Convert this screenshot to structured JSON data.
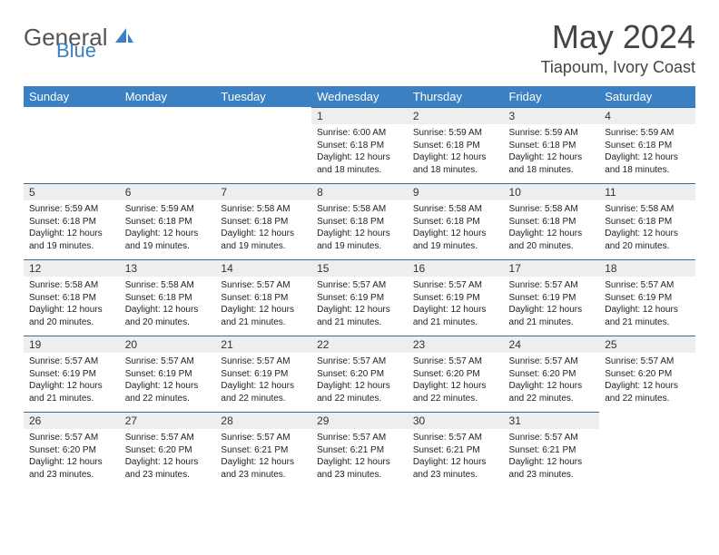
{
  "logo": {
    "text1": "General",
    "text2": "Blue"
  },
  "title": "May 2024",
  "subtitle": "Tiapoum, Ivory Coast",
  "colors": {
    "header_bg": "#3a80c3",
    "header_text": "#ffffff",
    "daynum_bg": "#eceef0",
    "daynum_border": "#3a6a9a",
    "logo_gray": "#555555",
    "logo_blue": "#3a80c3",
    "body_text": "#222222"
  },
  "day_names": [
    "Sunday",
    "Monday",
    "Tuesday",
    "Wednesday",
    "Thursday",
    "Friday",
    "Saturday"
  ],
  "first_weekday": 3,
  "num_days": 31,
  "days": {
    "1": {
      "sunrise": "6:00 AM",
      "sunset": "6:18 PM",
      "daylight": "12 hours and 18 minutes."
    },
    "2": {
      "sunrise": "5:59 AM",
      "sunset": "6:18 PM",
      "daylight": "12 hours and 18 minutes."
    },
    "3": {
      "sunrise": "5:59 AM",
      "sunset": "6:18 PM",
      "daylight": "12 hours and 18 minutes."
    },
    "4": {
      "sunrise": "5:59 AM",
      "sunset": "6:18 PM",
      "daylight": "12 hours and 18 minutes."
    },
    "5": {
      "sunrise": "5:59 AM",
      "sunset": "6:18 PM",
      "daylight": "12 hours and 19 minutes."
    },
    "6": {
      "sunrise": "5:59 AM",
      "sunset": "6:18 PM",
      "daylight": "12 hours and 19 minutes."
    },
    "7": {
      "sunrise": "5:58 AM",
      "sunset": "6:18 PM",
      "daylight": "12 hours and 19 minutes."
    },
    "8": {
      "sunrise": "5:58 AM",
      "sunset": "6:18 PM",
      "daylight": "12 hours and 19 minutes."
    },
    "9": {
      "sunrise": "5:58 AM",
      "sunset": "6:18 PM",
      "daylight": "12 hours and 19 minutes."
    },
    "10": {
      "sunrise": "5:58 AM",
      "sunset": "6:18 PM",
      "daylight": "12 hours and 20 minutes."
    },
    "11": {
      "sunrise": "5:58 AM",
      "sunset": "6:18 PM",
      "daylight": "12 hours and 20 minutes."
    },
    "12": {
      "sunrise": "5:58 AM",
      "sunset": "6:18 PM",
      "daylight": "12 hours and 20 minutes."
    },
    "13": {
      "sunrise": "5:58 AM",
      "sunset": "6:18 PM",
      "daylight": "12 hours and 20 minutes."
    },
    "14": {
      "sunrise": "5:57 AM",
      "sunset": "6:18 PM",
      "daylight": "12 hours and 21 minutes."
    },
    "15": {
      "sunrise": "5:57 AM",
      "sunset": "6:19 PM",
      "daylight": "12 hours and 21 minutes."
    },
    "16": {
      "sunrise": "5:57 AM",
      "sunset": "6:19 PM",
      "daylight": "12 hours and 21 minutes."
    },
    "17": {
      "sunrise": "5:57 AM",
      "sunset": "6:19 PM",
      "daylight": "12 hours and 21 minutes."
    },
    "18": {
      "sunrise": "5:57 AM",
      "sunset": "6:19 PM",
      "daylight": "12 hours and 21 minutes."
    },
    "19": {
      "sunrise": "5:57 AM",
      "sunset": "6:19 PM",
      "daylight": "12 hours and 21 minutes."
    },
    "20": {
      "sunrise": "5:57 AM",
      "sunset": "6:19 PM",
      "daylight": "12 hours and 22 minutes."
    },
    "21": {
      "sunrise": "5:57 AM",
      "sunset": "6:19 PM",
      "daylight": "12 hours and 22 minutes."
    },
    "22": {
      "sunrise": "5:57 AM",
      "sunset": "6:20 PM",
      "daylight": "12 hours and 22 minutes."
    },
    "23": {
      "sunrise": "5:57 AM",
      "sunset": "6:20 PM",
      "daylight": "12 hours and 22 minutes."
    },
    "24": {
      "sunrise": "5:57 AM",
      "sunset": "6:20 PM",
      "daylight": "12 hours and 22 minutes."
    },
    "25": {
      "sunrise": "5:57 AM",
      "sunset": "6:20 PM",
      "daylight": "12 hours and 22 minutes."
    },
    "26": {
      "sunrise": "5:57 AM",
      "sunset": "6:20 PM",
      "daylight": "12 hours and 23 minutes."
    },
    "27": {
      "sunrise": "5:57 AM",
      "sunset": "6:20 PM",
      "daylight": "12 hours and 23 minutes."
    },
    "28": {
      "sunrise": "5:57 AM",
      "sunset": "6:21 PM",
      "daylight": "12 hours and 23 minutes."
    },
    "29": {
      "sunrise": "5:57 AM",
      "sunset": "6:21 PM",
      "daylight": "12 hours and 23 minutes."
    },
    "30": {
      "sunrise": "5:57 AM",
      "sunset": "6:21 PM",
      "daylight": "12 hours and 23 minutes."
    },
    "31": {
      "sunrise": "5:57 AM",
      "sunset": "6:21 PM",
      "daylight": "12 hours and 23 minutes."
    }
  }
}
